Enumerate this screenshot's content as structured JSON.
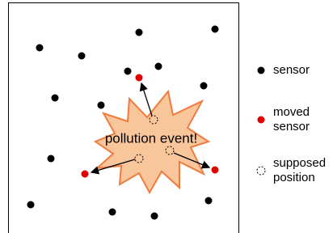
{
  "event_label": "pollution event!",
  "legend": [
    {
      "lines": [
        "sensor"
      ]
    },
    {
      "lines": [
        "moved",
        "sensor"
      ]
    },
    {
      "lines": [
        "supposed",
        "position"
      ]
    }
  ]
}
